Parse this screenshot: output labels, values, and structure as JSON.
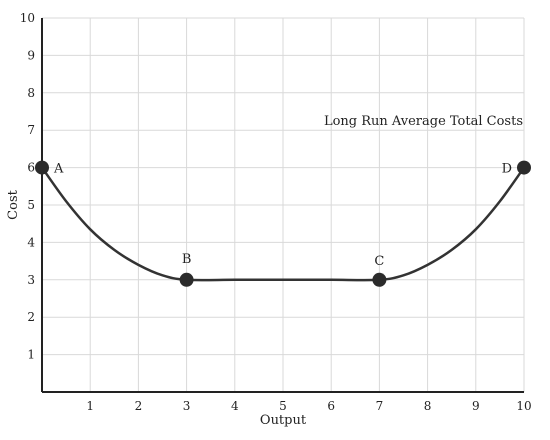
{
  "chart_data": {
    "type": "line",
    "title": "",
    "xlabel": "Output",
    "ylabel": "Cost",
    "xlim": [
      0,
      10
    ],
    "ylim": [
      0,
      10
    ],
    "x_ticks": [
      1,
      2,
      3,
      4,
      5,
      6,
      7,
      8,
      9,
      10
    ],
    "y_ticks": [
      1,
      2,
      3,
      4,
      5,
      6,
      7,
      8,
      9,
      10
    ],
    "grid": true,
    "annotation": "Long Run Average Total Costs",
    "series": [
      {
        "name": "Long Run Average Total Costs",
        "color": "#333333",
        "x": [
          0,
          0.5,
          1,
          1.5,
          2,
          2.5,
          3,
          4,
          5,
          6,
          7,
          7.5,
          8,
          8.5,
          9,
          9.5,
          10
        ],
        "y": [
          6,
          5.1,
          4.35,
          3.8,
          3.4,
          3.12,
          3,
          3,
          3,
          3,
          3,
          3.12,
          3.4,
          3.8,
          4.35,
          5.1,
          6
        ]
      }
    ],
    "points": [
      {
        "label": "A",
        "x": 0,
        "y": 6
      },
      {
        "label": "B",
        "x": 3,
        "y": 3
      },
      {
        "label": "C",
        "x": 7,
        "y": 3
      },
      {
        "label": "D",
        "x": 10,
        "y": 6
      }
    ]
  }
}
